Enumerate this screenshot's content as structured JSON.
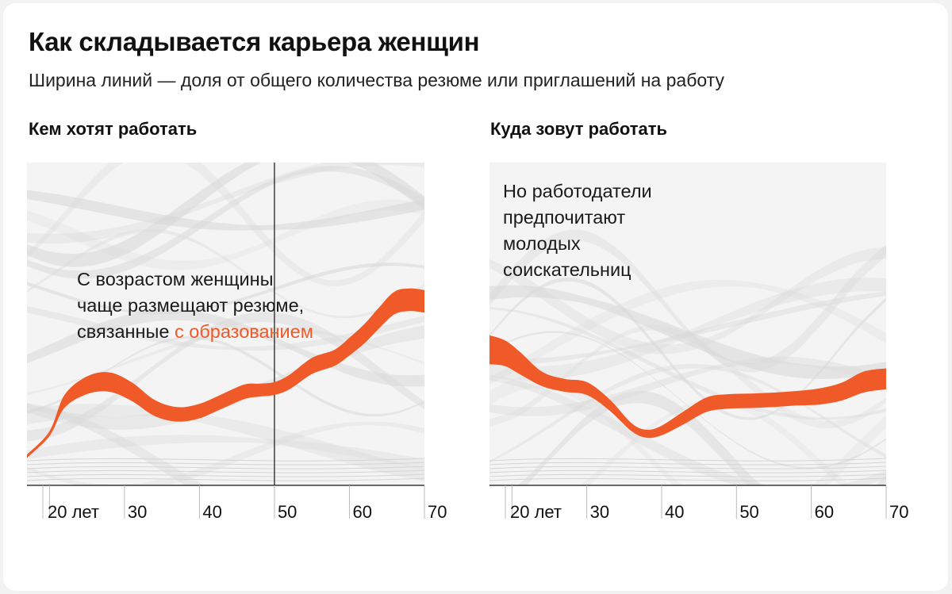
{
  "title": "Как складывается карьера женщин",
  "subtitle": "Ширина линий — доля от общего количества резюме или приглашений на работу",
  "accent_color": "#f05a28",
  "chart_data": [
    {
      "type": "area",
      "title": "Кем хотят работать",
      "x_tick_labels": [
        "20 лет",
        "30",
        "40",
        "50",
        "60",
        "70"
      ],
      "x_ticks": [
        20,
        30,
        40,
        50,
        60,
        70
      ],
      "xlim": [
        17,
        70
      ],
      "reference_line_x": 50,
      "annotation": {
        "text_before": "С возрастом женщины чаще размещают резюме, связанные",
        "highlight": "с образованием",
        "lines": [
          "С возрастом женщины",
          "чаще размещают резюме,",
          "связанные"
        ]
      },
      "highlight_series": {
        "x": [
          17,
          20,
          22,
          25,
          28,
          31,
          34,
          37,
          40,
          43,
          46,
          48,
          50,
          52,
          55,
          58,
          60,
          62,
          64,
          66,
          68,
          70
        ],
        "center": [
          0.09,
          0.16,
          0.26,
          0.31,
          0.32,
          0.29,
          0.24,
          0.22,
          0.23,
          0.26,
          0.29,
          0.295,
          0.3,
          0.32,
          0.37,
          0.395,
          0.43,
          0.47,
          0.52,
          0.565,
          0.575,
          0.57
        ],
        "width": [
          0.01,
          0.015,
          0.04,
          0.055,
          0.06,
          0.058,
          0.05,
          0.045,
          0.045,
          0.045,
          0.045,
          0.04,
          0.04,
          0.045,
          0.05,
          0.05,
          0.055,
          0.06,
          0.065,
          0.07,
          0.07,
          0.07
        ]
      }
    },
    {
      "type": "area",
      "title": "Куда зовут работать",
      "x_tick_labels": [
        "20 лет",
        "30",
        "40",
        "50",
        "60",
        "70"
      ],
      "x_ticks": [
        20,
        30,
        40,
        50,
        60,
        70
      ],
      "xlim": [
        17,
        70
      ],
      "annotation": {
        "lines": [
          "Но работодатели",
          "предпочитают",
          "молодых",
          "соискательниц"
        ]
      },
      "highlight_series": {
        "x": [
          17,
          19,
          21,
          24,
          27,
          30,
          33,
          36,
          38,
          40,
          43,
          46,
          49,
          52,
          55,
          58,
          61,
          64,
          67,
          70
        ],
        "center": [
          0.42,
          0.41,
          0.38,
          0.33,
          0.31,
          0.3,
          0.25,
          0.18,
          0.16,
          0.17,
          0.21,
          0.25,
          0.26,
          0.262,
          0.265,
          0.27,
          0.275,
          0.29,
          0.32,
          0.33
        ],
        "width": [
          0.09,
          0.08,
          0.07,
          0.045,
          0.04,
          0.04,
          0.035,
          0.025,
          0.025,
          0.03,
          0.04,
          0.045,
          0.045,
          0.045,
          0.045,
          0.045,
          0.05,
          0.055,
          0.065,
          0.065
        ]
      }
    }
  ]
}
